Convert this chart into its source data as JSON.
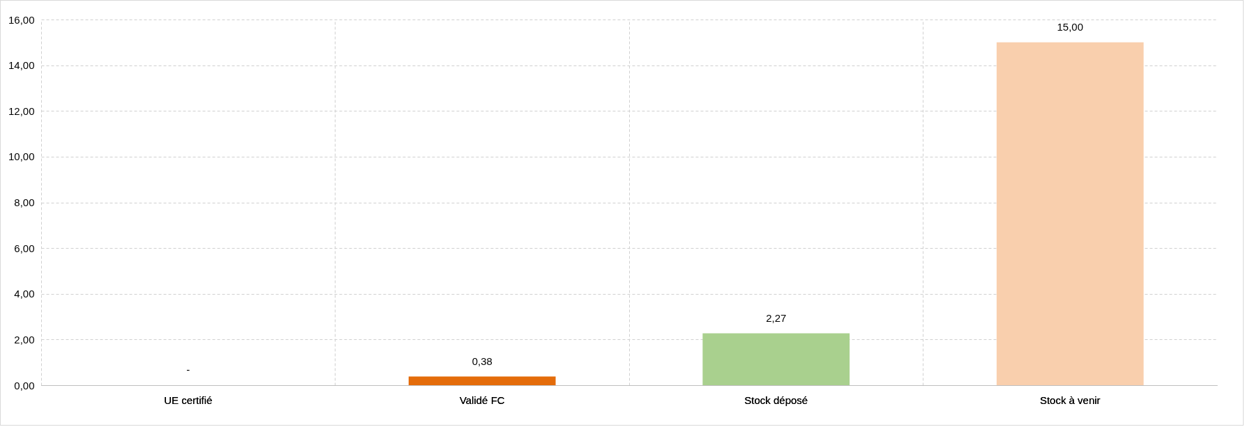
{
  "chart_data": {
    "type": "bar",
    "categories": [
      "UE certifié",
      "Validé FC",
      "Stock déposé",
      "Stock à venir"
    ],
    "values": [
      0,
      0.38,
      2.27,
      15.0
    ],
    "colors": [
      "#e46c0a",
      "#e46c0a",
      "#a9d08e",
      "#f9cfad"
    ],
    "value_labels": [
      "-",
      "0,38",
      "2,27",
      "15,00"
    ],
    "ylim": [
      0,
      16
    ],
    "yticks": [
      {
        "value": 0,
        "label": "0,00"
      },
      {
        "value": 2,
        "label": "2,00"
      },
      {
        "value": 4,
        "label": "4,00"
      },
      {
        "value": 6,
        "label": "6,00"
      },
      {
        "value": 8,
        "label": "8,00"
      },
      {
        "value": 10,
        "label": "10,00"
      },
      {
        "value": 12,
        "label": "12,00"
      },
      {
        "value": 14,
        "label": "14,00"
      },
      {
        "value": 16,
        "label": "16,00"
      }
    ],
    "grid": true
  }
}
